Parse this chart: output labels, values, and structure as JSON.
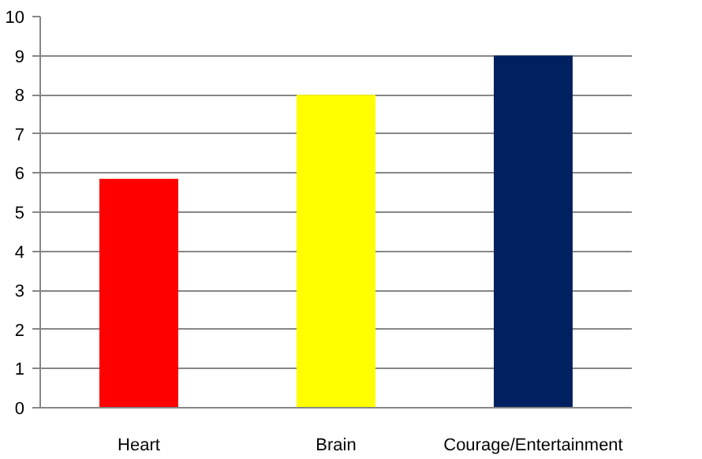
{
  "chart_data": {
    "type": "bar",
    "categories": [
      "Heart",
      "Brain",
      "Courage/Entertainment"
    ],
    "values": [
      5.85,
      8,
      9
    ],
    "colors": [
      "#ff0000",
      "#ffff00",
      "#002060"
    ],
    "ylim": [
      0,
      10
    ],
    "yticks": [
      0,
      1,
      2,
      3,
      4,
      5,
      6,
      7,
      8,
      9,
      10
    ],
    "grid": "y"
  }
}
